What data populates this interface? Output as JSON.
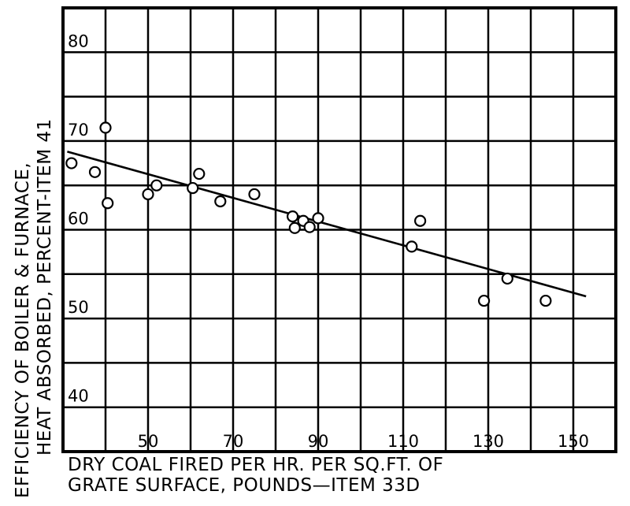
{
  "chart_data": {
    "type": "scatter",
    "title": "",
    "xlabel_lines": [
      "DRY COAL FIRED PER HR. PER SQ.FT. OF",
      "GRATE SURFACE, POUNDS—ITEM 33D"
    ],
    "ylabel_lines": [
      "EFFICIENCY OF BOILER & FURNACE,",
      "HEAT ABSORBED, PERCENT-ITEM 41"
    ],
    "xlim": [
      30,
      160
    ],
    "ylim": [
      35,
      85
    ],
    "x_ticks": [
      50,
      70,
      90,
      110,
      130,
      150
    ],
    "y_ticks": [
      40,
      50,
      60,
      70,
      80
    ],
    "grid": true,
    "series": [
      {
        "points": [
          {
            "x": 32,
            "y": 67.5
          },
          {
            "x": 37.5,
            "y": 66.5
          },
          {
            "x": 40,
            "y": 71.5
          },
          {
            "x": 40.5,
            "y": 63
          },
          {
            "x": 50,
            "y": 64
          },
          {
            "x": 52,
            "y": 65
          },
          {
            "x": 60.5,
            "y": 64.7
          },
          {
            "x": 62,
            "y": 66.3
          },
          {
            "x": 67,
            "y": 63.2
          },
          {
            "x": 75,
            "y": 64
          },
          {
            "x": 84,
            "y": 61.5
          },
          {
            "x": 84.5,
            "y": 60.2
          },
          {
            "x": 86.5,
            "y": 61
          },
          {
            "x": 88,
            "y": 60.3
          },
          {
            "x": 90,
            "y": 61.3
          },
          {
            "x": 112,
            "y": 58.1
          },
          {
            "x": 114,
            "y": 61
          },
          {
            "x": 129,
            "y": 52
          },
          {
            "x": 134.5,
            "y": 54.5
          },
          {
            "x": 143.5,
            "y": 52
          }
        ],
        "trend_line": [
          {
            "x": 31,
            "y": 68.8
          },
          {
            "x": 153,
            "y": 52.5
          }
        ]
      }
    ]
  }
}
